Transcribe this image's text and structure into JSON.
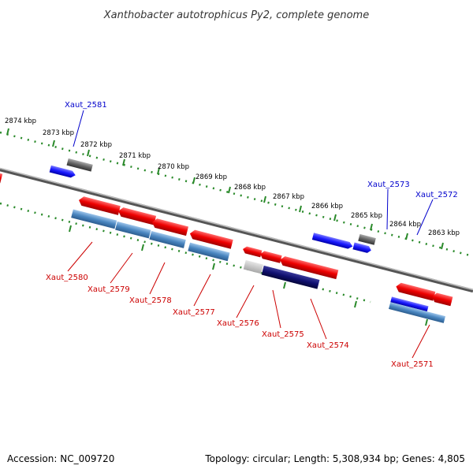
{
  "title": "Xanthobacter autotrophicus Py2, complete genome",
  "footer": {
    "accession": "Accession: NC_009720",
    "summary": "Topology: circular; Length: 5,308,934 bp; Genes: 4,805"
  },
  "colors": {
    "forward_cds": "#ee0000",
    "reverse_cds": "#4a86c0",
    "forward_gene": "#1a1aff",
    "other_gene": "#666666",
    "tick": "#2a8a2a",
    "label_forward": "#0000cc",
    "label_reverse": "#cc0000"
  },
  "ruler": {
    "kbp_labels": [
      "2874 kbp",
      "2873 kbp",
      "2872 kbp",
      "2871 kbp",
      "2870 kbp",
      "2869 kbp",
      "2868 kbp",
      "2867 kbp",
      "2866 kbp",
      "2865 kbp",
      "2864 kbp",
      "2863 kbp"
    ]
  },
  "genes": {
    "forward": [
      "Xaut_2581",
      "Xaut_2573",
      "Xaut_2572"
    ],
    "reverse": [
      "Xaut_2580",
      "Xaut_2579",
      "Xaut_2578",
      "Xaut_2577",
      "Xaut_2576",
      "Xaut_2575",
      "Xaut_2574",
      "Xaut_2571"
    ]
  }
}
